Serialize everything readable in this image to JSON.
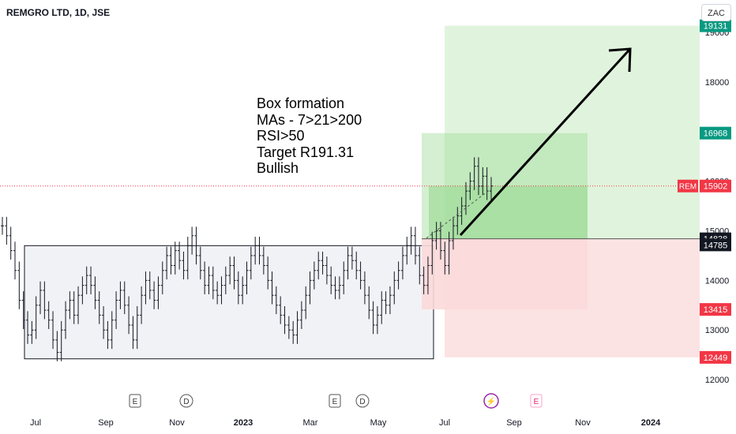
{
  "header": {
    "symbol_title": "REMGRO LTD, 1D, JSE",
    "currency_button": "ZAC"
  },
  "annotation": {
    "lines": [
      "Box formation",
      "MAs - 7>21>200",
      "RSI>50",
      "Target R191.31",
      "Bullish"
    ]
  },
  "colors": {
    "target_zone": "#d6f0d2",
    "target_zone_inner": "#9fdc98",
    "stop_zone": "#fbd9d9",
    "price_line": "#f23645",
    "up_badge": "#089981",
    "candles": "#131722",
    "box_fill": "#e8eaf0"
  },
  "chart_data": {
    "type": "line",
    "symbol": "REM",
    "interval": "1D",
    "ylim": [
      11700,
      19650
    ],
    "x_tick_labels": [
      "Jul",
      "Sep",
      "Nov",
      "2023",
      "Mar",
      "May",
      "Jul",
      "Sep",
      "Nov",
      "2024"
    ],
    "y_tick_labels": [
      "12000",
      "13000",
      "14000",
      "15000",
      "16000",
      "17000",
      "18000",
      "19000"
    ],
    "price_series": [
      15100,
      14900,
      14600,
      14200,
      13600,
      13200,
      12900,
      13000,
      13500,
      13800,
      13400,
      13200,
      12800,
      12550,
      13000,
      13400,
      13600,
      13300,
      13700,
      13900,
      14100,
      13900,
      13600,
      13300,
      13000,
      12800,
      13200,
      13600,
      13800,
      13500,
      13100,
      12800,
      13300,
      13700,
      14000,
      13800,
      13600,
      13900,
      14200,
      14500,
      14300,
      14600,
      14400,
      14200,
      14700,
      14900,
      14500,
      14200,
      13900,
      14100,
      13800,
      13700,
      13900,
      14100,
      14300,
      14000,
      13700,
      13900,
      14200,
      14500,
      14700,
      14500,
      14300,
      14000,
      13700,
      13500,
      13300,
      13100,
      13000,
      12900,
      13200,
      13400,
      13700,
      14000,
      14200,
      14400,
      14300,
      14100,
      13900,
      13800,
      13900,
      14200,
      14500,
      14400,
      14200,
      14000,
      13700,
      13400,
      13100,
      13300,
      13600,
      13500,
      13700,
      14000,
      14200,
      14500,
      14700,
      14900,
      14500,
      14100,
      13900,
      14300,
      14800,
      15000,
      14600,
      14300,
      14800,
      15100,
      15300,
      15500,
      15800,
      16000,
      16300,
      15900,
      16100,
      15800,
      15902
    ],
    "levels": {
      "last_price": 15902,
      "target_high": 19131,
      "mid_target": 16968,
      "entry_upper": 14838,
      "entry_lower": 14785,
      "stop_inner": 13415,
      "stop_outer": 12449
    },
    "price_labels": [
      "19131",
      "16968",
      "15902",
      "14838",
      "14785",
      "13415",
      "12449"
    ],
    "last_price_symbol": "REM",
    "consolidation_box": {
      "y_low": 12420,
      "y_high": 14700
    },
    "event_markers": [
      {
        "letter": "E",
        "kind": "earnings"
      },
      {
        "letter": "D",
        "kind": "dividend"
      },
      {
        "letter": "E",
        "kind": "earnings"
      },
      {
        "letter": "D",
        "kind": "dividend"
      },
      {
        "letter": "⚡",
        "kind": "flash"
      },
      {
        "letter": "E",
        "kind": "earnings-future"
      }
    ]
  }
}
